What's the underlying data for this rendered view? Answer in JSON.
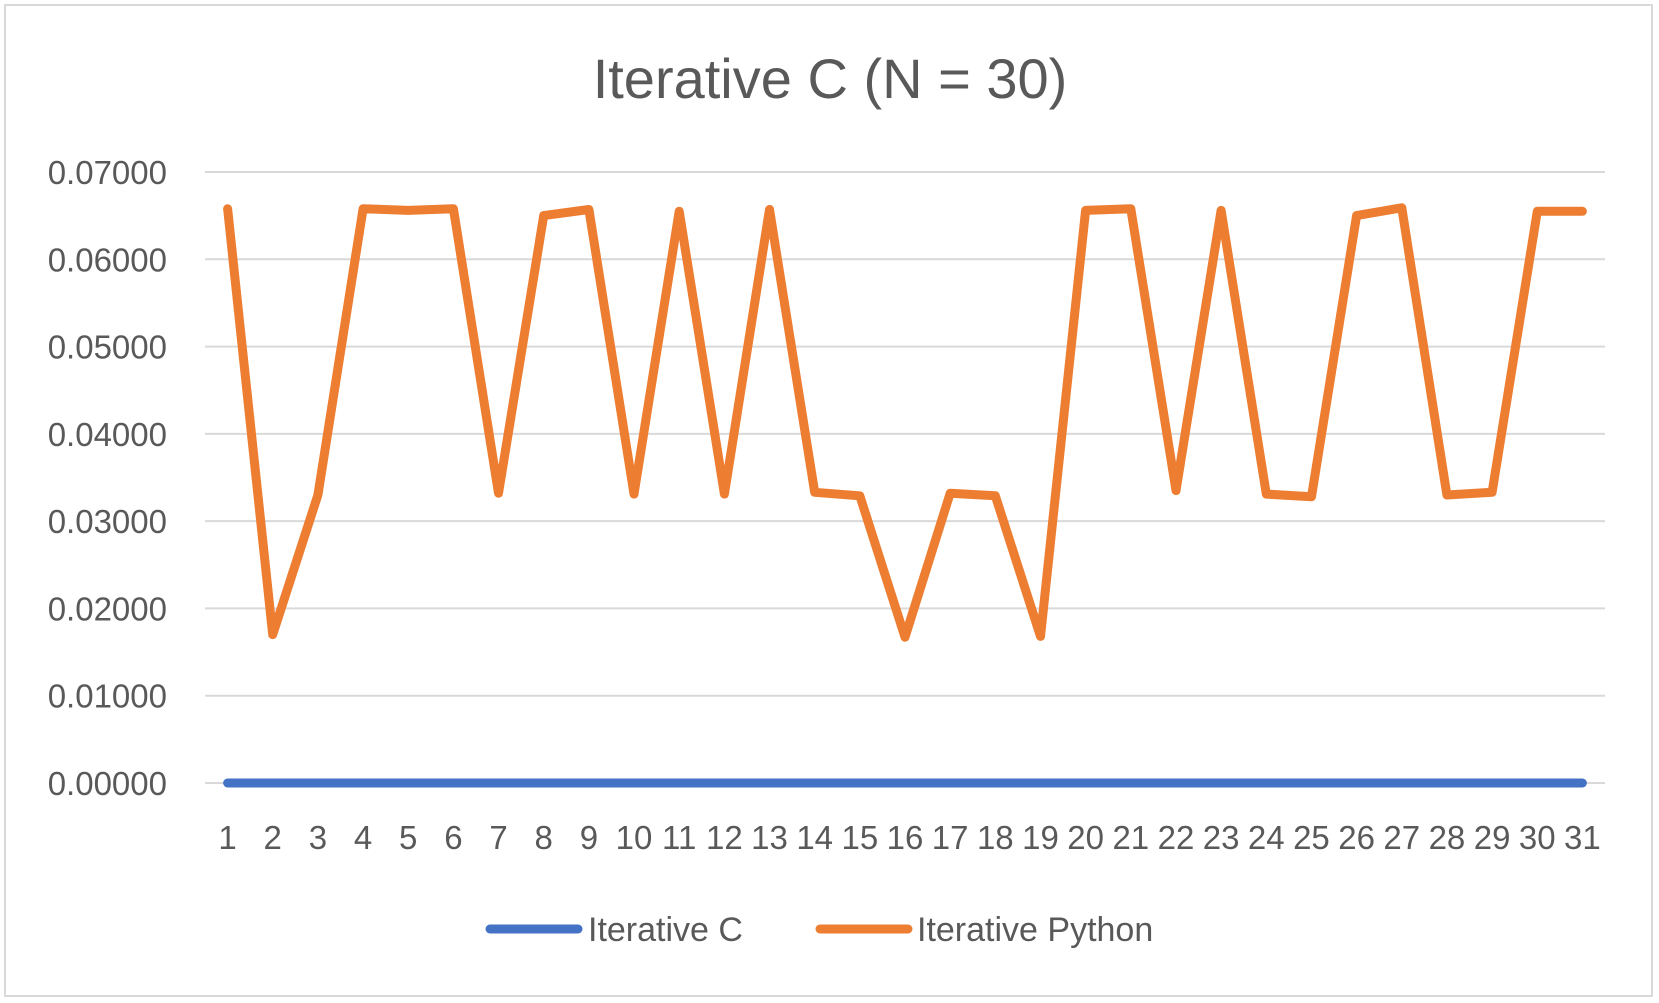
{
  "chart_data": {
    "type": "line",
    "title": "Iterative C (N = 30)",
    "xlabel": "",
    "ylabel": "",
    "categories": [
      "1",
      "2",
      "3",
      "4",
      "5",
      "6",
      "7",
      "8",
      "9",
      "10",
      "11",
      "12",
      "13",
      "14",
      "15",
      "16",
      "17",
      "18",
      "19",
      "20",
      "21",
      "22",
      "23",
      "24",
      "25",
      "26",
      "27",
      "28",
      "29",
      "30",
      "31"
    ],
    "ylim": [
      0,
      0.07
    ],
    "yticks": [
      "0.00000",
      "0.01000",
      "0.02000",
      "0.03000",
      "0.04000",
      "0.05000",
      "0.06000",
      "0.07000"
    ],
    "grid": true,
    "legend_position": "bottom",
    "series": [
      {
        "name": "Iterative C",
        "color": "#4472c4",
        "values": [
          0,
          0,
          0,
          0,
          0,
          0,
          0,
          0,
          0,
          0,
          0,
          0,
          0,
          0,
          0,
          0,
          0,
          0,
          0,
          0,
          0,
          0,
          0,
          0,
          0,
          0,
          0,
          0,
          0,
          0,
          0
        ]
      },
      {
        "name": "Iterative Python",
        "color": "#ed7d31",
        "values": [
          0.0658,
          0.017,
          0.033,
          0.0658,
          0.0656,
          0.0658,
          0.0332,
          0.065,
          0.0657,
          0.0331,
          0.0655,
          0.0331,
          0.0657,
          0.0333,
          0.0329,
          0.0167,
          0.0332,
          0.0329,
          0.0168,
          0.0656,
          0.0658,
          0.0335,
          0.0656,
          0.0331,
          0.0328,
          0.065,
          0.0659,
          0.033,
          0.0333,
          0.0655,
          0.0655
        ]
      }
    ]
  }
}
